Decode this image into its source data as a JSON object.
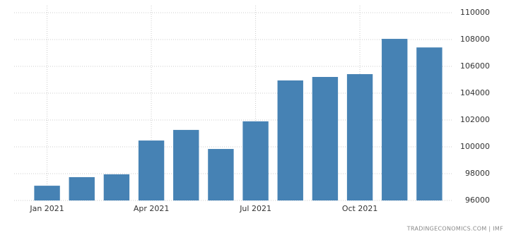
{
  "chart_data": {
    "type": "bar",
    "categories": [
      "Jan 2021",
      null,
      null,
      "Apr 2021",
      null,
      null,
      "Jul 2021",
      null,
      null,
      "Oct 2021",
      null,
      null
    ],
    "values": [
      97100,
      97740,
      97950,
      100470,
      101260,
      99840,
      101900,
      104950,
      105210,
      105420,
      108050,
      107410
    ],
    "color": "#4682b4",
    "ylim": [
      96000,
      110000
    ],
    "yticks": [
      96000,
      98000,
      100000,
      102000,
      104000,
      106000,
      108000,
      110000
    ],
    "grid": true,
    "source": "TRADINGECONOMICS.COM | IMF"
  }
}
